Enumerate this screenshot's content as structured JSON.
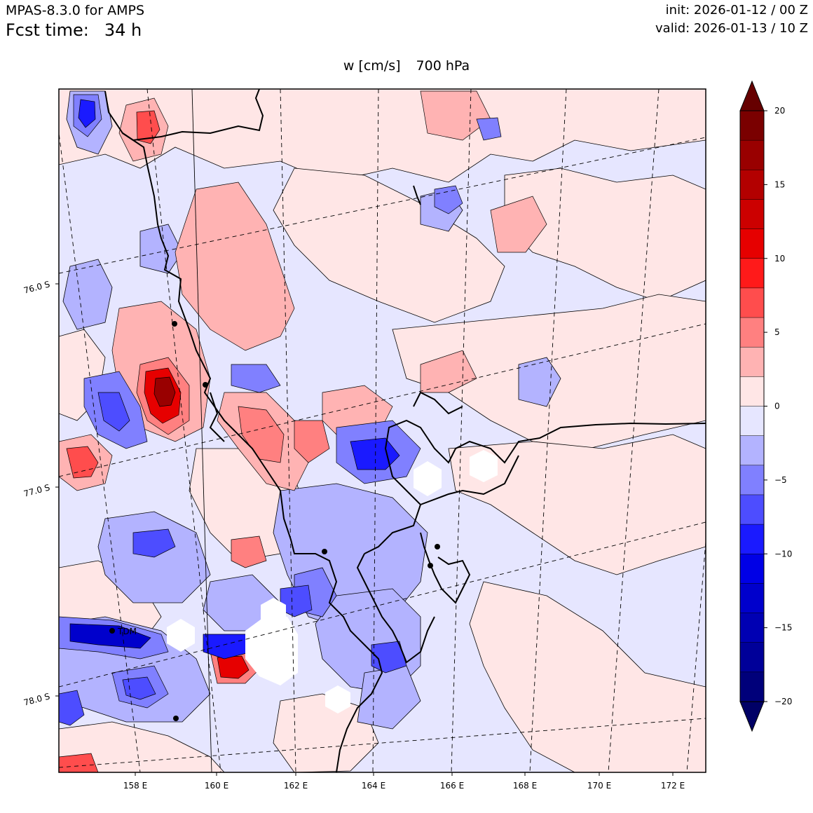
{
  "header": {
    "model": "MPAS-8.3.0 for AMPS",
    "fcst_label": "Fcst time:",
    "fcst_value": "34 h",
    "init": "init: 2026-01-12 / 00 Z",
    "valid": "valid: 2026-01-13 / 10 Z",
    "field": "w [cm/s]",
    "level": "700 hPa"
  },
  "map": {
    "lon_labels": [
      "158 E",
      "160 E",
      "162 E",
      "164 E",
      "166 E",
      "168 E",
      "170 E",
      "172 E"
    ],
    "lat_labels": [
      "76.0 S",
      "77.0 S",
      "78.0 S"
    ],
    "station_label": "TDM"
  },
  "colorbar": {
    "tick_labels": [
      "20",
      "15",
      "10",
      "5",
      "0",
      "−5",
      "−10",
      "−15",
      "−20"
    ],
    "levels": [
      -20,
      -18,
      -16,
      -14,
      -12,
      -10,
      -8,
      -6,
      -4,
      -2,
      0,
      2,
      4,
      6,
      8,
      10,
      12,
      14,
      16,
      18,
      20
    ],
    "colors_top_to_bottom": [
      "#7a0000",
      "#990000",
      "#b30000",
      "#cc0000",
      "#e60000",
      "#ff1a1a",
      "#ff4d4d",
      "#ff8080",
      "#ffb3b3",
      "#ffe6e6",
      "#e6e6ff",
      "#b3b3ff",
      "#8080ff",
      "#4d4dff",
      "#1a1aff",
      "#0000e6",
      "#0000cc",
      "#0000b3",
      "#000099",
      "#00007a"
    ],
    "over_color": "#660000",
    "under_color": "#000066"
  }
}
